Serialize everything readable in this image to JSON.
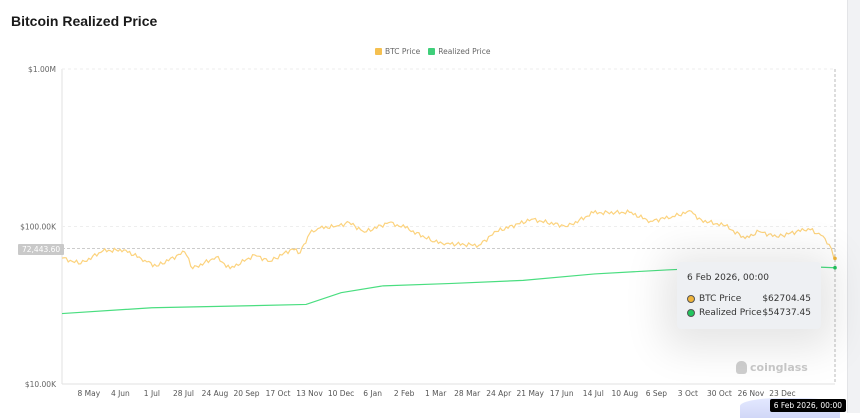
{
  "chart_data": {
    "type": "line",
    "title": "Bitcoin Realized Price",
    "y_scale": "log",
    "ylim": [
      10000,
      1000000
    ],
    "y_ticks": [
      "$1.00M",
      "$100.00K",
      "$10.00K"
    ],
    "y_tick_values": [
      1000000,
      100000,
      10000
    ],
    "x_ticks": [
      "8 May",
      "4 Jun",
      "1 Jul",
      "28 Jul",
      "24 Aug",
      "20 Sep",
      "17 Oct",
      "13 Nov",
      "10 Dec",
      "6 Jan",
      "2 Feb",
      "1 Mar",
      "28 Mar",
      "24 Apr",
      "21 May",
      "17 Jun",
      "14 Jul",
      "10 Aug",
      "6 Sep",
      "3 Oct",
      "30 Oct",
      "26 Nov",
      "23 Dec"
    ],
    "x_tick_dates": [
      "2024-05-08",
      "2024-06-04",
      "2024-07-01",
      "2024-07-28",
      "2024-08-24",
      "2024-09-20",
      "2024-10-17",
      "2024-11-13",
      "2024-12-10",
      "2025-01-06",
      "2025-02-02",
      "2025-03-01",
      "2025-03-28",
      "2025-04-24",
      "2025-05-21",
      "2025-06-17",
      "2025-07-14",
      "2025-08-10",
      "2025-09-06",
      "2025-10-03",
      "2025-10-30",
      "2025-11-26",
      "2025-12-23"
    ],
    "grid": true,
    "legend_position": "top-center",
    "series": [
      {
        "name": "BTC Price",
        "color": "#fcd37e",
        "points": [
          [
            "2024-04-15",
            63000
          ],
          [
            "2024-05-01",
            58000
          ],
          [
            "2024-05-20",
            70000
          ],
          [
            "2024-06-07",
            71000
          ],
          [
            "2024-06-25",
            61000
          ],
          [
            "2024-07-05",
            56000
          ],
          [
            "2024-07-29",
            69000
          ],
          [
            "2024-08-05",
            54000
          ],
          [
            "2024-08-25",
            64000
          ],
          [
            "2024-09-06",
            54000
          ],
          [
            "2024-09-27",
            66000
          ],
          [
            "2024-10-10",
            60000
          ],
          [
            "2024-10-29",
            72000
          ],
          [
            "2024-11-05",
            68000
          ],
          [
            "2024-11-13",
            90000
          ],
          [
            "2024-11-22",
            98000
          ],
          [
            "2024-12-05",
            100000
          ],
          [
            "2024-12-17",
            106000
          ],
          [
            "2024-12-30",
            92000
          ],
          [
            "2025-01-20",
            106000
          ],
          [
            "2025-02-03",
            98000
          ],
          [
            "2025-02-28",
            80000
          ],
          [
            "2025-03-10",
            78000
          ],
          [
            "2025-04-07",
            76000
          ],
          [
            "2025-04-22",
            93000
          ],
          [
            "2025-05-22",
            111000
          ],
          [
            "2025-06-22",
            100000
          ],
          [
            "2025-07-14",
            122000
          ],
          [
            "2025-08-14",
            123000
          ],
          [
            "2025-09-01",
            108000
          ],
          [
            "2025-09-20",
            116000
          ],
          [
            "2025-10-06",
            125000
          ],
          [
            "2025-10-11",
            111000
          ],
          [
            "2025-11-04",
            101000
          ],
          [
            "2025-11-21",
            84000
          ],
          [
            "2025-12-03",
            93000
          ],
          [
            "2025-12-18",
            86000
          ],
          [
            "2026-01-14",
            97000
          ],
          [
            "2026-01-25",
            88000
          ],
          [
            "2026-02-01",
            77000
          ],
          [
            "2026-02-05",
            63000
          ],
          [
            "2026-02-06",
            62704.45
          ]
        ]
      },
      {
        "name": "Realized Price",
        "color": "#4ade80",
        "points": [
          [
            "2024-04-15",
            28000
          ],
          [
            "2024-07-01",
            30500
          ],
          [
            "2024-10-01",
            31500
          ],
          [
            "2024-11-10",
            32000
          ],
          [
            "2024-12-10",
            38000
          ],
          [
            "2025-01-15",
            42000
          ],
          [
            "2025-03-15",
            43500
          ],
          [
            "2025-05-15",
            45500
          ],
          [
            "2025-07-15",
            50000
          ],
          [
            "2025-09-15",
            53000
          ],
          [
            "2025-11-15",
            55500
          ],
          [
            "2026-01-15",
            55500
          ],
          [
            "2026-02-06",
            54737.45
          ]
        ]
      }
    ]
  },
  "crosshair": {
    "y_value_label": "72,443.60",
    "x_date_label": "6 Feb 2026, 00:00"
  },
  "tooltip": {
    "date": "6 Feb 2026, 00:00",
    "rows": [
      {
        "label": "BTC Price",
        "value": "$62704.45",
        "color": "#f0b43a"
      },
      {
        "label": "Realized Price",
        "value": "$54737.45",
        "color": "#22c55e"
      }
    ]
  },
  "watermark": "coinglass"
}
